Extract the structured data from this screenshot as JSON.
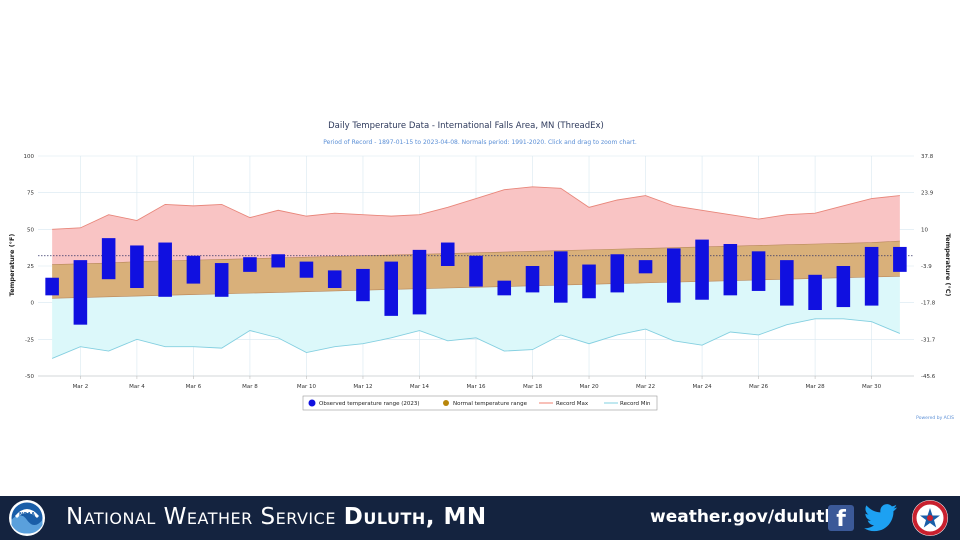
{
  "chart_data": {
    "type": "bar",
    "title": "Daily Temperature Data - International Falls Area, MN (ThreadEx)",
    "subtitle": "Period of Record - 1897-01-15 to 2023-04-08. Normals period: 1991-2020. Click and drag to zoom chart.",
    "ylabel": "Temperature (°F)",
    "y2label": "Temperature (°C)",
    "ylim": [
      -50,
      100
    ],
    "yticks": [
      100,
      75,
      50,
      25,
      0,
      -25,
      -50
    ],
    "y2ticks": [
      "37.8",
      "23.9",
      "10",
      "-3.9",
      "-17.8",
      "-31.7",
      "-45.6"
    ],
    "xlim": [
      0.5,
      31.5
    ],
    "xticks": [
      2,
      4,
      6,
      8,
      10,
      12,
      14,
      16,
      18,
      20,
      22,
      24,
      26,
      28,
      30
    ],
    "xtick_labels": [
      "Mar 2",
      "Mar 4",
      "Mar 6",
      "Mar 8",
      "Mar 10",
      "Mar 12",
      "Mar 14",
      "Mar 16",
      "Mar 18",
      "Mar 20",
      "Mar 22",
      "Mar 24",
      "Mar 26",
      "Mar 28",
      "Mar 30"
    ],
    "days": [
      1,
      2,
      3,
      4,
      5,
      6,
      7,
      8,
      9,
      10,
      11,
      12,
      13,
      14,
      15,
      16,
      17,
      18,
      19,
      20,
      21,
      22,
      23,
      24,
      25,
      26,
      27,
      28,
      29,
      30,
      31
    ],
    "observed_low": [
      5,
      -15,
      16,
      10,
      4,
      13,
      4,
      21,
      24,
      17,
      10,
      1,
      -9,
      -8,
      25,
      11,
      5,
      7,
      0,
      3,
      7,
      20,
      0,
      2,
      5,
      8,
      -2,
      -5,
      -3,
      -2,
      21
    ],
    "observed_high": [
      17,
      29,
      44,
      39,
      41,
      32,
      27,
      31,
      33,
      28,
      22,
      23,
      28,
      36,
      41,
      32,
      15,
      25,
      35,
      26,
      33,
      29,
      37,
      43,
      40,
      35,
      29,
      19,
      25,
      38,
      38
    ],
    "normal_low": [
      3,
      3.5,
      4,
      4.5,
      5,
      5.5,
      6,
      6.5,
      7,
      7.5,
      8,
      8.5,
      9,
      9.5,
      10,
      10.5,
      11,
      11.5,
      12,
      12.5,
      13,
      13.5,
      14,
      14.5,
      15,
      15.5,
      16,
      16.5,
      17,
      17.5,
      18
    ],
    "normal_high": [
      26,
      26.5,
      27,
      28,
      28.5,
      29,
      29.5,
      30,
      30.5,
      31,
      31.5,
      32,
      32.5,
      33,
      33.5,
      34,
      34.5,
      35,
      35.5,
      36,
      36.5,
      37,
      37.5,
      38,
      38.5,
      39,
      39.5,
      40,
      40.5,
      41,
      42
    ],
    "record_max": [
      50,
      51,
      60,
      56,
      67,
      66,
      67,
      58,
      63,
      59,
      61,
      60,
      59,
      60,
      65,
      71,
      77,
      79,
      78,
      65,
      70,
      73,
      66,
      63,
      60,
      57,
      60,
      61,
      66,
      71,
      73
    ],
    "record_min": [
      -38,
      -30,
      -33,
      -25,
      -30,
      -30,
      -31,
      -19,
      -24,
      -34,
      -30,
      -28,
      -24,
      -19,
      -26,
      -24,
      -33,
      -32,
      -22,
      -28,
      -22,
      -18,
      -26,
      -29,
      -20,
      -22,
      -15,
      -11,
      -11,
      -13,
      -21
    ],
    "legend": {
      "placement": "bottom-center",
      "items": [
        {
          "label": "Observed temperature range (2023)",
          "color": "#1010e0"
        },
        {
          "label": "Normal temperature range",
          "color": "#b8860b"
        },
        {
          "label": "Record Max",
          "color": "#f08070"
        },
        {
          "label": "Record Min",
          "color": "#80d0e0"
        }
      ]
    },
    "credit": "Powered by ACIS",
    "colors": {
      "observed": "#1010e0",
      "normal_fill": "#d9b07a",
      "record_max_fill": "#f9c4c4",
      "record_max_line": "#e8867a",
      "record_min_fill": "#dcf8fa",
      "record_min_line": "#84cfe0",
      "grid": "#d8e8f0"
    }
  },
  "footer": {
    "org_prefix": "National Weather Service",
    "office": "Duluth, MN",
    "url": "weather.gov/duluth",
    "noaa_logo_text": "NOAA",
    "facebook_glyph": "f",
    "icons": [
      "noaa-logo",
      "facebook-icon",
      "twitter-icon",
      "nws-logo"
    ],
    "colors": {
      "background": "#14233f",
      "text": "#ffffff"
    }
  }
}
